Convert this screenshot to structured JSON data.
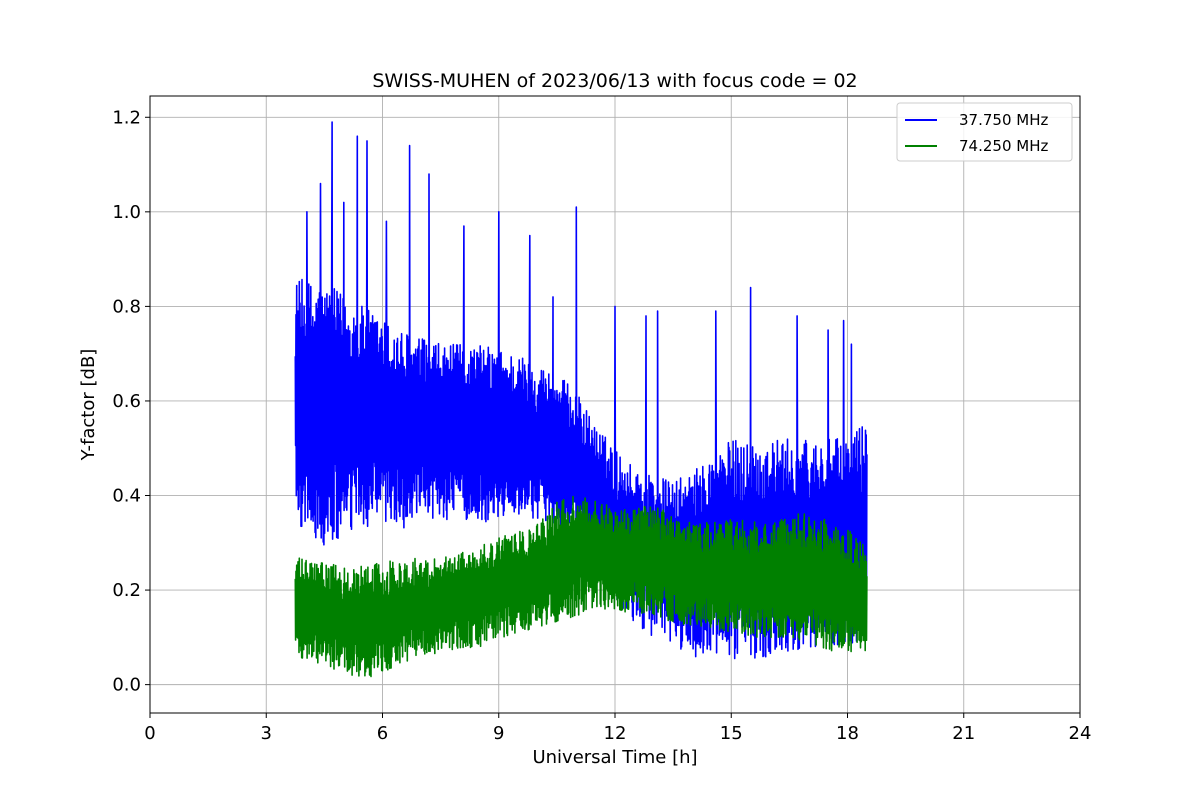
{
  "chart_data": {
    "type": "line",
    "title": "SWISS-MUHEN of 2023/06/13 with focus code = 02",
    "xlabel": "Universal Time [h]",
    "ylabel": "Y-factor [dB]",
    "xlim": [
      0,
      24
    ],
    "ylim": [
      -0.06,
      1.245
    ],
    "x_ticks": [
      0,
      3,
      6,
      9,
      12,
      15,
      18,
      21,
      24
    ],
    "x_tick_labels": [
      "0",
      "3",
      "6",
      "9",
      "12",
      "15",
      "18",
      "21",
      "24"
    ],
    "y_ticks": [
      0.0,
      0.2,
      0.4,
      0.6,
      0.8,
      1.0,
      1.2
    ],
    "y_tick_labels": [
      "0.0",
      "0.2",
      "0.4",
      "0.6",
      "0.8",
      "1.0",
      "1.2"
    ],
    "grid": true,
    "legend_position": "top-right",
    "series": [
      {
        "name": "37.750 MHz",
        "color": "#0000ff",
        "x_range": [
          3.75,
          18.5
        ],
        "upper_envelope": [
          [
            3.75,
            0.86
          ],
          [
            4.5,
            0.85
          ],
          [
            5.5,
            0.8
          ],
          [
            6.5,
            0.75
          ],
          [
            7.5,
            0.72
          ],
          [
            8.5,
            0.72
          ],
          [
            9.5,
            0.7
          ],
          [
            10.5,
            0.66
          ],
          [
            11.0,
            0.62
          ],
          [
            11.5,
            0.55
          ],
          [
            12.0,
            0.5
          ],
          [
            12.5,
            0.46
          ],
          [
            13.5,
            0.43
          ],
          [
            14.0,
            0.45
          ],
          [
            15.0,
            0.52
          ],
          [
            16.0,
            0.52
          ],
          [
            17.0,
            0.52
          ],
          [
            18.0,
            0.52
          ],
          [
            18.5,
            0.57
          ]
        ],
        "lower_envelope": [
          [
            3.75,
            0.34
          ],
          [
            4.5,
            0.28
          ],
          [
            5.5,
            0.33
          ],
          [
            6.5,
            0.33
          ],
          [
            7.5,
            0.35
          ],
          [
            8.5,
            0.34
          ],
          [
            9.5,
            0.36
          ],
          [
            10.5,
            0.34
          ],
          [
            11.0,
            0.3
          ],
          [
            11.5,
            0.22
          ],
          [
            12.0,
            0.16
          ],
          [
            13.0,
            0.1
          ],
          [
            14.0,
            0.06
          ],
          [
            15.0,
            0.05
          ],
          [
            16.0,
            0.06
          ],
          [
            17.0,
            0.08
          ],
          [
            18.0,
            0.08
          ],
          [
            18.5,
            0.08
          ]
        ],
        "peaks": [
          [
            4.7,
            1.19
          ],
          [
            5.6,
            1.15
          ],
          [
            4.4,
            1.06
          ],
          [
            6.7,
            1.14
          ],
          [
            5.35,
            1.16
          ],
          [
            4.05,
            1.0
          ],
          [
            5.0,
            1.02
          ],
          [
            7.2,
            1.08
          ],
          [
            6.1,
            0.98
          ],
          [
            8.1,
            0.97
          ],
          [
            9.0,
            1.0
          ],
          [
            11.0,
            1.01
          ],
          [
            9.8,
            0.95
          ],
          [
            10.4,
            0.82
          ],
          [
            12.8,
            0.78
          ],
          [
            13.1,
            0.79
          ],
          [
            14.6,
            0.79
          ],
          [
            15.5,
            0.84
          ],
          [
            16.7,
            0.78
          ],
          [
            17.5,
            0.75
          ],
          [
            17.9,
            0.77
          ],
          [
            18.1,
            0.72
          ],
          [
            12.0,
            0.8
          ]
        ]
      },
      {
        "name": "74.250 MHz",
        "color": "#008000",
        "x_range": [
          3.75,
          18.5
        ],
        "upper_envelope": [
          [
            3.75,
            0.27
          ],
          [
            5.0,
            0.25
          ],
          [
            6.0,
            0.26
          ],
          [
            7.0,
            0.27
          ],
          [
            8.0,
            0.28
          ],
          [
            9.0,
            0.31
          ],
          [
            10.0,
            0.34
          ],
          [
            10.5,
            0.39
          ],
          [
            11.0,
            0.4
          ],
          [
            12.0,
            0.38
          ],
          [
            13.0,
            0.38
          ],
          [
            14.0,
            0.34
          ],
          [
            15.0,
            0.35
          ],
          [
            16.0,
            0.34
          ],
          [
            17.0,
            0.37
          ],
          [
            18.0,
            0.33
          ],
          [
            18.5,
            0.29
          ]
        ],
        "lower_envelope": [
          [
            3.75,
            0.06
          ],
          [
            4.5,
            0.04
          ],
          [
            5.5,
            0.01
          ],
          [
            6.5,
            0.04
          ],
          [
            7.5,
            0.07
          ],
          [
            8.5,
            0.08
          ],
          [
            9.5,
            0.11
          ],
          [
            10.5,
            0.13
          ],
          [
            11.5,
            0.16
          ],
          [
            12.5,
            0.15
          ],
          [
            13.5,
            0.13
          ],
          [
            14.5,
            0.12
          ],
          [
            15.5,
            0.1
          ],
          [
            16.5,
            0.1
          ],
          [
            17.5,
            0.07
          ],
          [
            18.5,
            0.07
          ]
        ]
      }
    ]
  }
}
